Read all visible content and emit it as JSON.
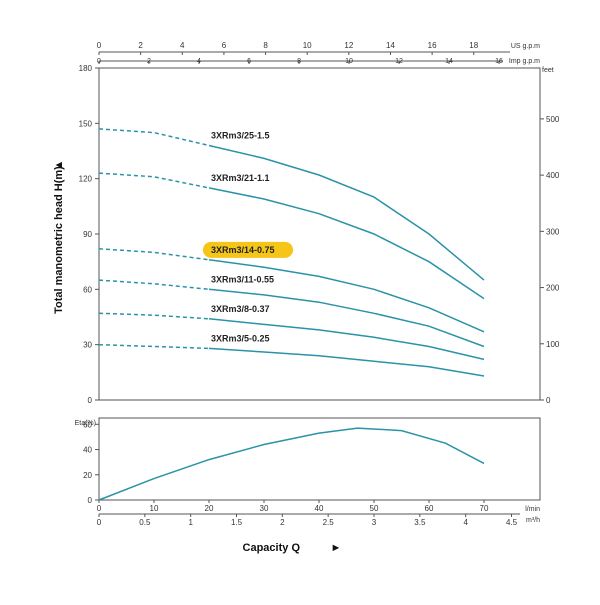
{
  "chart_data": [
    {
      "type": "line",
      "ylabel": "Total manometric head H(m)",
      "ylabel_marker": "▲",
      "ylim": [
        0,
        180
      ],
      "y_ticks": [
        0,
        30,
        60,
        90,
        120,
        150,
        180
      ],
      "x_unit_lmin": "l/min",
      "xlim_lmin": [
        0,
        75
      ],
      "right_axis": {
        "unit": "feet",
        "ticks": [
          0,
          100,
          200,
          300,
          400,
          500
        ]
      },
      "top_axis_usgpm": {
        "unit": "US g.p.m",
        "ticks": [
          0,
          2,
          4,
          6,
          8,
          10,
          12,
          14,
          16,
          18
        ]
      },
      "top_axis_impgpm": {
        "unit": "Imp g.p.m",
        "ticks": [
          0,
          2,
          4,
          6,
          8,
          10,
          12,
          14,
          16
        ]
      },
      "grid": false,
      "series": [
        {
          "name": "3XRm3/25-1.5",
          "highlight": false,
          "points": [
            [
              0,
              147
            ],
            [
              10,
              145
            ],
            [
              20,
              138
            ],
            [
              30,
              131
            ],
            [
              40,
              122
            ],
            [
              50,
              110
            ],
            [
              60,
              90
            ],
            [
              70,
              65
            ]
          ]
        },
        {
          "name": "3XRm3/21-1.1",
          "highlight": false,
          "points": [
            [
              0,
              123
            ],
            [
              10,
              121
            ],
            [
              20,
              115
            ],
            [
              30,
              109
            ],
            [
              40,
              101
            ],
            [
              50,
              90
            ],
            [
              60,
              75
            ],
            [
              70,
              55
            ]
          ]
        },
        {
          "name": "3XRm3/14-0.75",
          "highlight": true,
          "points": [
            [
              0,
              82
            ],
            [
              10,
              80
            ],
            [
              20,
              76
            ],
            [
              30,
              72
            ],
            [
              40,
              67
            ],
            [
              50,
              60
            ],
            [
              60,
              50
            ],
            [
              70,
              37
            ]
          ]
        },
        {
          "name": "3XRm3/11-0.55",
          "highlight": false,
          "points": [
            [
              0,
              65
            ],
            [
              10,
              63
            ],
            [
              20,
              60
            ],
            [
              30,
              57
            ],
            [
              40,
              53
            ],
            [
              50,
              47
            ],
            [
              60,
              40
            ],
            [
              70,
              29
            ]
          ]
        },
        {
          "name": "3XRm3/8-0.37",
          "highlight": false,
          "points": [
            [
              0,
              47
            ],
            [
              10,
              46
            ],
            [
              20,
              44
            ],
            [
              30,
              41
            ],
            [
              40,
              38
            ],
            [
              50,
              34
            ],
            [
              60,
              29
            ],
            [
              70,
              22
            ]
          ]
        },
        {
          "name": "3XRm3/5-0.25",
          "highlight": false,
          "points": [
            [
              0,
              30
            ],
            [
              10,
              29
            ],
            [
              20,
              28
            ],
            [
              30,
              26
            ],
            [
              40,
              24
            ],
            [
              50,
              21
            ],
            [
              60,
              18
            ],
            [
              70,
              13
            ]
          ]
        }
      ],
      "dashed_until_x": 20
    },
    {
      "type": "line",
      "ylabel": "Eta(%)",
      "ylim": [
        0,
        65
      ],
      "y_ticks": [
        0,
        20,
        40,
        60
      ],
      "xlabel": "Capacity Q",
      "xlabel_marker": "►",
      "x_unit_lmin": "l/min",
      "x_ticks_lmin": [
        0,
        10,
        20,
        30,
        40,
        50,
        60,
        70
      ],
      "x_unit_m3h": "m³/h",
      "x_ticks_m3h": [
        "0",
        "0.5",
        "1",
        "1.5",
        "2",
        "2.5",
        "3",
        "3.5",
        "4",
        "4.5"
      ],
      "series": [
        {
          "name": "",
          "points": [
            [
              0,
              0
            ],
            [
              10,
              17
            ],
            [
              20,
              32
            ],
            [
              30,
              44
            ],
            [
              40,
              53
            ],
            [
              47,
              57
            ],
            [
              55,
              55
            ],
            [
              63,
              45
            ],
            [
              70,
              29
            ]
          ]
        }
      ]
    }
  ],
  "colors": {
    "curve": "#2a93a8",
    "axis": "#555555",
    "highlight": "#f5c518"
  }
}
